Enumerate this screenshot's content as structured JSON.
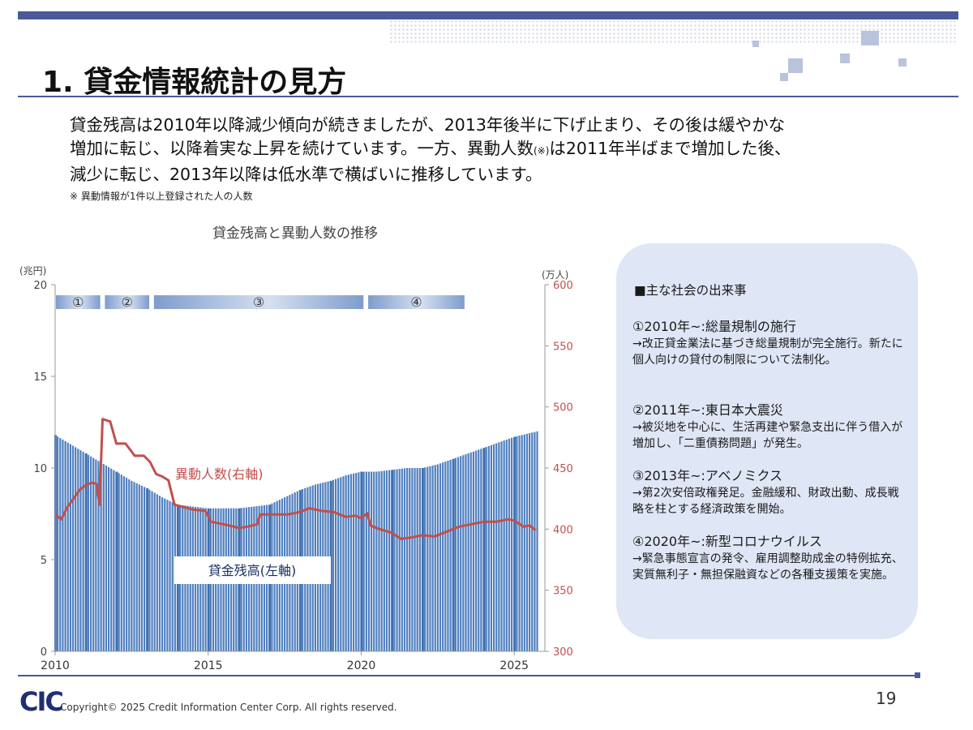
{
  "slide": {
    "title": "1. 貸金情報統計の見方",
    "intro_lines": [
      "貸金残高は2010年以降減少傾向が続きましたが、2013年後半に下げ止まり、その後は緩やかな",
      "増加に転じ、以降着実な上昇を続けています。一方、異動人数",
      "(※)",
      "は2011年半ばまで増加した後、",
      "減少に転じ、2013年以降は低水準で横ばいに推移しています。"
    ],
    "footnote": "※ 異動情報が1件以上登録された人の人数",
    "page_number": "19",
    "logo": "CIC",
    "copyright": "Copyright© 2025 Credit Information Center Corp. All rights reserved.",
    "colors": {
      "accent": "#4a5a9a",
      "bars": "#4f7fbf",
      "line": "#c0504d",
      "events_bg": "#dfe6f5"
    }
  },
  "events_panel": {
    "heading": "■主な社会の出来事",
    "items": [
      {
        "title": "①2010年~:総量規制の施行",
        "detail": "→改正貸金業法に基づき総量規制が完全施行。新たに個人向けの貸付の制限について法制化。"
      },
      {
        "title": "②2011年~:東日本大震災",
        "detail": "→被災地を中心に、生活再建や緊急支出に伴う借入が増加し、「二重債務問題」が発生。"
      },
      {
        "title": "③2013年~:アベノミクス",
        "detail": "→第2次安倍政権発足。金融緩和、財政出動、成長戦略を柱とする経済政策を開始。"
      },
      {
        "title": "④2020年~:新型コロナウイルス",
        "detail": "→緊急事態宣言の発令、雇用調整助成金の特例拡充、実質無利子・無担保融資などの各種支援策を実施。"
      }
    ]
  },
  "chart_data": {
    "type": "bar",
    "title": "貸金残高と異動人数の推移",
    "x_ticks": [
      "2010",
      "2015",
      "2020",
      "2025"
    ],
    "x_range": [
      2010,
      2025.75
    ],
    "left_axis": {
      "unit": "(兆円)",
      "ticks": [
        "0",
        "5",
        "10",
        "15",
        "20"
      ],
      "ylim": [
        0,
        20
      ]
    },
    "right_axis": {
      "unit": "(万人)",
      "ticks": [
        "300",
        "350",
        "400",
        "450",
        "500",
        "550",
        "600"
      ],
      "ylim": [
        300,
        600
      ]
    },
    "period_bands": [
      {
        "label": "①",
        "start": 2010.0,
        "end": 2011.5
      },
      {
        "label": "②",
        "start": 2011.6,
        "end": 2013.1
      },
      {
        "label": "③",
        "start": 2013.2,
        "end": 2020.1
      },
      {
        "label": "④",
        "start": 2020.2,
        "end": 2023.4
      }
    ],
    "series": [
      {
        "name": "貸金残高(左軸)",
        "axis": "left",
        "kind": "bar",
        "points": [
          [
            2010.0,
            11.8
          ],
          [
            2010.5,
            11.3
          ],
          [
            2011.0,
            10.8
          ],
          [
            2011.5,
            10.3
          ],
          [
            2012.0,
            9.8
          ],
          [
            2012.5,
            9.3
          ],
          [
            2013.0,
            8.9
          ],
          [
            2013.5,
            8.4
          ],
          [
            2014.0,
            8.0
          ],
          [
            2015.0,
            7.8
          ],
          [
            2016.0,
            7.8
          ],
          [
            2017.0,
            8.0
          ],
          [
            2017.5,
            8.4
          ],
          [
            2018.0,
            8.8
          ],
          [
            2018.5,
            9.1
          ],
          [
            2019.0,
            9.3
          ],
          [
            2019.5,
            9.6
          ],
          [
            2020.0,
            9.8
          ],
          [
            2020.5,
            9.8
          ],
          [
            2021.0,
            9.9
          ],
          [
            2021.5,
            10.0
          ],
          [
            2022.0,
            10.0
          ],
          [
            2022.5,
            10.2
          ],
          [
            2023.0,
            10.5
          ],
          [
            2023.5,
            10.8
          ],
          [
            2024.0,
            11.1
          ],
          [
            2024.5,
            11.4
          ],
          [
            2025.0,
            11.7
          ],
          [
            2025.75,
            12.0
          ]
        ]
      },
      {
        "name": "異動人数(右軸)",
        "axis": "right",
        "kind": "line",
        "points": [
          [
            2010.0,
            412
          ],
          [
            2010.2,
            408
          ],
          [
            2010.4,
            418
          ],
          [
            2010.6,
            425
          ],
          [
            2010.8,
            432
          ],
          [
            2011.0,
            436
          ],
          [
            2011.2,
            438
          ],
          [
            2011.35,
            437
          ],
          [
            2011.45,
            420
          ],
          [
            2011.55,
            490
          ],
          [
            2011.8,
            488
          ],
          [
            2012.0,
            470
          ],
          [
            2012.3,
            470
          ],
          [
            2012.6,
            460
          ],
          [
            2012.9,
            460
          ],
          [
            2013.1,
            455
          ],
          [
            2013.3,
            445
          ],
          [
            2013.5,
            443
          ],
          [
            2013.7,
            440
          ],
          [
            2013.9,
            420
          ],
          [
            2014.2,
            418
          ],
          [
            2014.5,
            416
          ],
          [
            2014.9,
            415
          ],
          [
            2015.1,
            406
          ],
          [
            2015.5,
            404
          ],
          [
            2016.0,
            401
          ],
          [
            2016.3,
            402
          ],
          [
            2016.6,
            404
          ],
          [
            2016.7,
            412
          ],
          [
            2017.2,
            412
          ],
          [
            2017.6,
            412
          ],
          [
            2018.0,
            414
          ],
          [
            2018.3,
            417
          ],
          [
            2018.7,
            415
          ],
          [
            2019.1,
            414
          ],
          [
            2019.5,
            410
          ],
          [
            2019.8,
            411
          ],
          [
            2020.0,
            409
          ],
          [
            2020.2,
            413
          ],
          [
            2020.3,
            403
          ],
          [
            2020.6,
            400
          ],
          [
            2021.0,
            397
          ],
          [
            2021.3,
            392
          ],
          [
            2021.6,
            393
          ],
          [
            2022.0,
            395
          ],
          [
            2022.4,
            394
          ],
          [
            2022.8,
            398
          ],
          [
            2023.2,
            402
          ],
          [
            2023.6,
            404
          ],
          [
            2024.0,
            406
          ],
          [
            2024.4,
            406
          ],
          [
            2024.8,
            408
          ],
          [
            2025.0,
            407
          ],
          [
            2025.3,
            402
          ],
          [
            2025.5,
            403
          ],
          [
            2025.7,
            399
          ]
        ]
      }
    ]
  }
}
